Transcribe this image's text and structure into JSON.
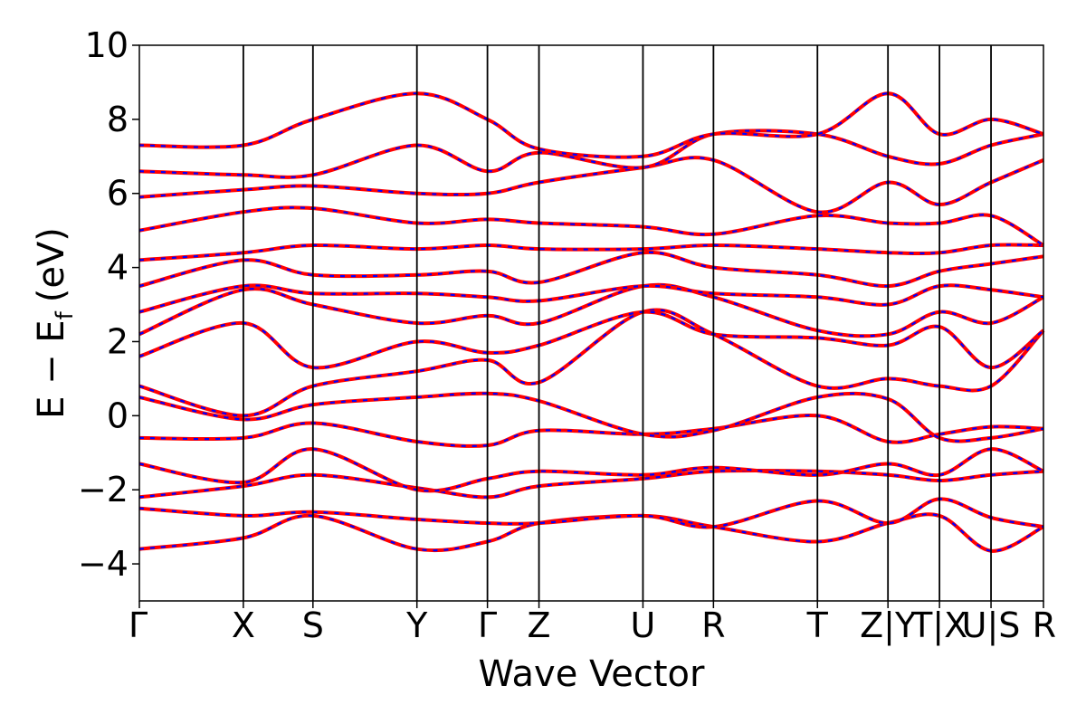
{
  "chart_data": {
    "type": "line",
    "title": "",
    "xlabel": "Wave Vector",
    "ylabel": "E − E",
    "ylabel_subscript": "f",
    "ylabel_unit": "(eV)",
    "ylim": [
      -5,
      10
    ],
    "yticks": [
      -4,
      -2,
      0,
      2,
      4,
      6,
      8,
      10
    ],
    "ytick_labels": [
      "−4",
      "−2",
      "0",
      "2",
      "4",
      "6",
      "8",
      "10"
    ],
    "xlim": [
      0,
      10
    ],
    "kpath_positions": [
      0,
      1.15,
      1.92,
      3.07,
      3.85,
      4.42,
      5.57,
      6.35,
      7.5,
      8.28,
      8.85,
      9.42,
      10
    ],
    "kpath_labels": [
      {
        "text": "Γ",
        "x": 0
      },
      {
        "text": "X",
        "x": 1.15
      },
      {
        "text": "S",
        "x": 1.92
      },
      {
        "text": "Y",
        "x": 3.07
      },
      {
        "text": "Γ",
        "x": 3.85
      },
      {
        "text": "Z",
        "x": 4.42
      },
      {
        "text": "U",
        "x": 5.57
      },
      {
        "text": "R",
        "x": 6.35
      },
      {
        "text": "T",
        "x": 7.5
      },
      {
        "text": "Z|Y",
        "x": 8.28
      },
      {
        "text": "T|X",
        "x": 8.85
      },
      {
        "text": "U|S",
        "x": 9.42
      },
      {
        "text": "R",
        "x": 10
      }
    ],
    "grid": false,
    "series_colors": {
      "line": "#ff0000",
      "dash": "#0000ff"
    },
    "bands": [
      {
        "values": [
          -3.6,
          -3.3,
          -2.7,
          -3.6,
          -3.4,
          -2.9,
          -2.7,
          -3.0,
          -3.4,
          -2.9,
          -2.7,
          -3.65,
          -3.0
        ]
      },
      {
        "values": [
          -2.5,
          -2.7,
          -2.6,
          -2.8,
          -2.9,
          -2.9,
          -2.7,
          -3.0,
          -2.3,
          -2.9,
          -2.25,
          -2.75,
          -3.0
        ]
      },
      {
        "values": [
          -2.2,
          -1.9,
          -1.6,
          -1.95,
          -2.2,
          -1.9,
          -1.7,
          -1.5,
          -1.5,
          -1.6,
          -1.75,
          -1.6,
          -1.5
        ]
      },
      {
        "values": [
          -1.3,
          -1.8,
          -0.9,
          -2.0,
          -1.7,
          -1.5,
          -1.6,
          -1.4,
          -1.6,
          -1.3,
          -1.6,
          -0.9,
          -1.5
        ]
      },
      {
        "values": [
          -0.6,
          -0.6,
          -0.2,
          -0.7,
          -0.8,
          -0.4,
          -0.5,
          -0.35,
          0.0,
          -0.7,
          -0.5,
          -0.3,
          -0.35
        ]
      },
      {
        "values": [
          0.5,
          -0.1,
          0.3,
          0.5,
          0.6,
          0.4,
          -0.5,
          -0.4,
          0.5,
          0.45,
          -0.6,
          -0.6,
          -0.35
        ]
      },
      {
        "values": [
          0.8,
          0.0,
          0.8,
          1.2,
          1.5,
          0.9,
          2.8,
          2.2,
          0.8,
          1.0,
          0.8,
          0.8,
          2.3
        ]
      },
      {
        "values": [
          1.6,
          2.5,
          1.3,
          2.0,
          1.7,
          1.9,
          2.8,
          2.2,
          2.1,
          1.9,
          2.4,
          1.3,
          2.3
        ]
      },
      {
        "values": [
          2.2,
          3.4,
          3.0,
          2.5,
          2.7,
          2.5,
          3.5,
          3.2,
          2.3,
          2.2,
          2.8,
          2.5,
          3.2
        ]
      },
      {
        "values": [
          2.8,
          3.5,
          3.3,
          3.3,
          3.2,
          3.1,
          3.5,
          3.3,
          3.2,
          3.0,
          3.5,
          3.4,
          3.2
        ]
      },
      {
        "values": [
          3.5,
          4.2,
          3.8,
          3.8,
          3.9,
          3.6,
          4.4,
          4.0,
          3.8,
          3.5,
          3.9,
          4.1,
          4.3
        ]
      },
      {
        "values": [
          4.2,
          4.4,
          4.6,
          4.5,
          4.6,
          4.5,
          4.5,
          4.6,
          4.5,
          4.4,
          4.4,
          4.6,
          4.6
        ]
      },
      {
        "values": [
          5.0,
          5.5,
          5.6,
          5.2,
          5.3,
          5.2,
          5.1,
          4.9,
          5.4,
          5.2,
          5.2,
          5.4,
          4.6
        ]
      },
      {
        "values": [
          5.9,
          6.1,
          6.2,
          6.0,
          6.0,
          6.3,
          6.7,
          6.9,
          5.5,
          6.3,
          5.7,
          6.3,
          6.9
        ]
      },
      {
        "values": [
          6.6,
          6.5,
          6.5,
          7.3,
          6.6,
          7.1,
          6.7,
          7.6,
          7.6,
          7.0,
          6.8,
          7.3,
          7.6
        ]
      },
      {
        "values": [
          7.3,
          7.3,
          8.0,
          8.7,
          8.0,
          7.2,
          7.0,
          7.6,
          7.6,
          8.7,
          7.6,
          8.0,
          7.6
        ]
      }
    ]
  }
}
